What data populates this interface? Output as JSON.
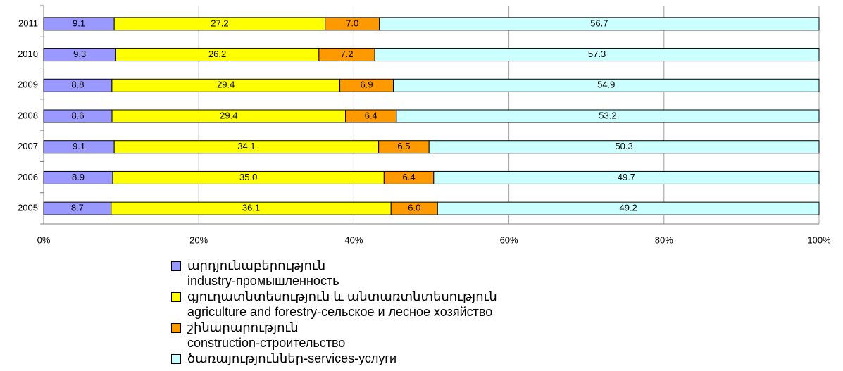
{
  "chart_data": {
    "type": "bar",
    "orientation": "horizontal",
    "stacking": "percent",
    "categories": [
      "2011",
      "2010",
      "2009",
      "2008",
      "2007",
      "2006",
      "2005"
    ],
    "series": [
      {
        "name": "արդյունաբերություն\nindustry-промышленность",
        "color": "#9999ff",
        "values": [
          9.1,
          9.3,
          8.8,
          8.6,
          9.1,
          8.9,
          8.7
        ],
        "value_labels": [
          "9.1",
          "9.3",
          "8.8",
          "8.6",
          "9.1",
          "8.9",
          "8.7"
        ]
      },
      {
        "name": "գյուղատնտեսություն և անտառտնտեսություն\nagriculture and forestry-сельское и лесное хозяйство",
        "color": "#ffff00",
        "values": [
          27.2,
          26.2,
          29.4,
          29.4,
          34.1,
          35.0,
          36.1
        ],
        "value_labels": [
          "27.2",
          "26.2",
          "29.4",
          "29.4",
          "34.1",
          "35.0",
          "36.1"
        ]
      },
      {
        "name": "շինարարություն\nconstruction-строительство",
        "color": "#ff9900",
        "values": [
          7.0,
          7.2,
          6.9,
          6.4,
          6.5,
          6.4,
          6.0
        ],
        "value_labels": [
          "7.0",
          "7.2",
          "6.9",
          "6.4",
          "6.5",
          "6.4",
          "6.0"
        ]
      },
      {
        "name": "ծառայություններ-services-услуги",
        "color": "#ccffff",
        "values": [
          56.7,
          57.3,
          54.9,
          53.2,
          50.3,
          49.7,
          49.2
        ],
        "value_labels": [
          "56.7",
          "57.3",
          "54.9",
          "53.2",
          "50.3",
          "49.7",
          "49.2"
        ]
      }
    ],
    "xlim": [
      0,
      100
    ],
    "xticks": [
      {
        "value": 0,
        "label": "0%"
      },
      {
        "value": 20,
        "label": "20%"
      },
      {
        "value": 40,
        "label": "40%"
      },
      {
        "value": 60,
        "label": "60%"
      },
      {
        "value": 80,
        "label": "80%"
      },
      {
        "value": 100,
        "label": "100%"
      }
    ],
    "grid": true
  }
}
